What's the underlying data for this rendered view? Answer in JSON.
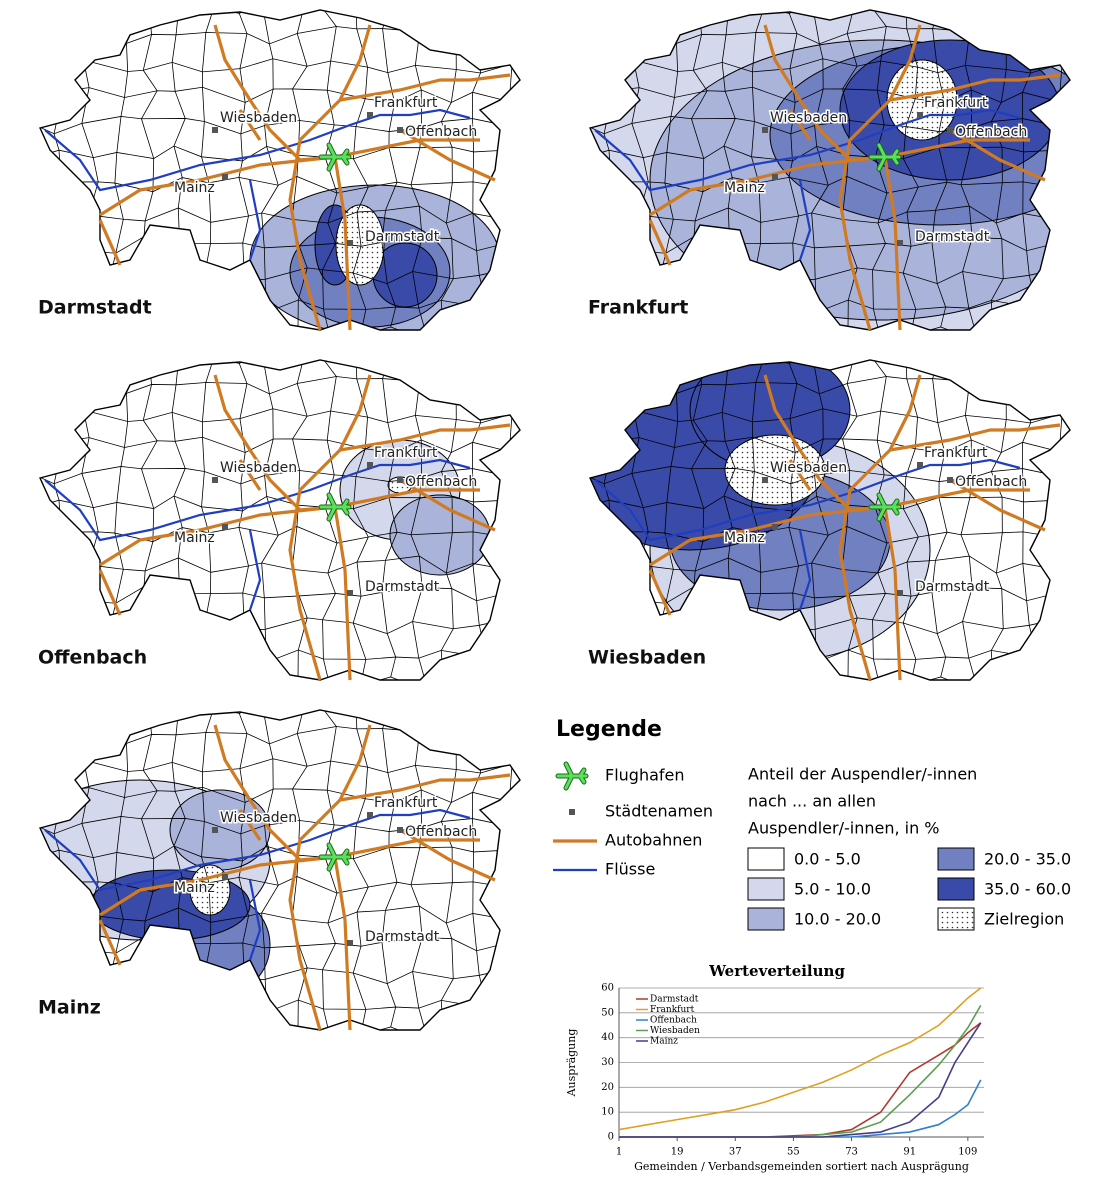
{
  "maps": [
    {
      "title": "Darmstadt"
    },
    {
      "title": "Frankfurt"
    },
    {
      "title": "Offenbach"
    },
    {
      "title": "Wiesbaden"
    },
    {
      "title": "Mainz"
    }
  ],
  "city_labels": [
    "Wiesbaden",
    "Frankfurt",
    "Offenbach",
    "Mainz",
    "Darmstadt"
  ],
  "legend": {
    "title": "Legende",
    "symbols": [
      "Flughafen",
      "Städtenamen",
      "Autobahnen",
      "Flüsse"
    ],
    "class_title": [
      "Anteil der Auspendler/-innen",
      "nach ... an allen",
      "Auspendler/-innen, in %"
    ],
    "classes": [
      {
        "label": "0.0 - 5.0",
        "color": "#ffffff"
      },
      {
        "label": "5.0 - 10.0",
        "color": "#d4d8ec"
      },
      {
        "label": "10.0 - 20.0",
        "color": "#aab3da"
      },
      {
        "label": "20.0 - 35.0",
        "color": "#7080c0"
      },
      {
        "label": "35.0 - 60.0",
        "color": "#3a4aa8"
      },
      {
        "label": "Zielregion",
        "color": "#ffffff"
      }
    ]
  },
  "chart_data": {
    "type": "line",
    "title": "Werteverteilung",
    "x_label": "Gemeinden / Verbandsgemeinden sortiert nach Ausprägung",
    "y_label": "Ausprägung",
    "x": [
      1,
      10,
      19,
      28,
      37,
      46,
      55,
      64,
      73,
      82,
      91,
      100,
      105,
      109,
      113
    ],
    "series": [
      {
        "name": "Darmstadt",
        "color": "#b03a2e",
        "values": [
          0,
          0,
          0,
          0,
          0,
          0,
          0.5,
          1,
          3,
          10,
          26,
          33,
          37,
          42,
          46
        ]
      },
      {
        "name": "Frankfurt",
        "color": "#e0a020",
        "values": [
          3,
          5,
          7,
          9,
          11,
          14,
          18,
          22,
          27,
          33,
          38,
          45,
          51,
          56,
          60
        ]
      },
      {
        "name": "Offenbach",
        "color": "#2e7fcf",
        "values": [
          0,
          0,
          0,
          0,
          0,
          0,
          0,
          0,
          0,
          1,
          2,
          5,
          9,
          13,
          23
        ]
      },
      {
        "name": "Wiesbaden",
        "color": "#5aa050",
        "values": [
          0,
          0,
          0,
          0,
          0,
          0,
          0,
          1,
          2,
          6,
          17,
          29,
          37,
          44,
          53
        ]
      },
      {
        "name": "Mainz",
        "color": "#4a3a8a",
        "values": [
          0,
          0,
          0,
          0,
          0,
          0,
          0,
          0,
          1,
          2,
          6,
          16,
          30,
          38,
          46
        ]
      }
    ],
    "xlim": [
      1,
      114
    ],
    "ylim": [
      0,
      60
    ],
    "xticks": [
      1,
      19,
      37,
      55,
      73,
      91,
      109
    ],
    "yticks": [
      0,
      10,
      20,
      30,
      40,
      50,
      60
    ],
    "grid": true
  }
}
